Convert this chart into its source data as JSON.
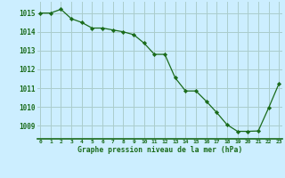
{
  "x": [
    0,
    1,
    2,
    3,
    4,
    5,
    6,
    7,
    8,
    9,
    10,
    11,
    12,
    13,
    14,
    15,
    16,
    17,
    18,
    19,
    20,
    21,
    22,
    23
  ],
  "y": [
    1015.0,
    1015.0,
    1015.2,
    1014.7,
    1014.5,
    1014.2,
    1014.2,
    1014.1,
    1014.0,
    1013.85,
    1013.4,
    1012.8,
    1012.8,
    1011.55,
    1010.85,
    1010.85,
    1010.3,
    1009.7,
    1009.05,
    1008.7,
    1008.7,
    1008.72,
    1009.95,
    1011.25
  ],
  "line_color": "#1a6b1a",
  "marker_color": "#1a6b1a",
  "bg_color": "#cceeff",
  "grid_color": "#aacccc",
  "xlabel": "Graphe pression niveau de la mer (hPa)",
  "xlabel_color": "#1a6b1a",
  "tick_color": "#1a6b1a",
  "ylim_min": 1008.3,
  "ylim_max": 1015.6,
  "yticks": [
    1009,
    1010,
    1011,
    1012,
    1013,
    1014,
    1015
  ],
  "xticks": [
    0,
    1,
    2,
    3,
    4,
    5,
    6,
    7,
    8,
    9,
    10,
    11,
    12,
    13,
    14,
    15,
    16,
    17,
    18,
    19,
    20,
    21,
    22,
    23
  ]
}
